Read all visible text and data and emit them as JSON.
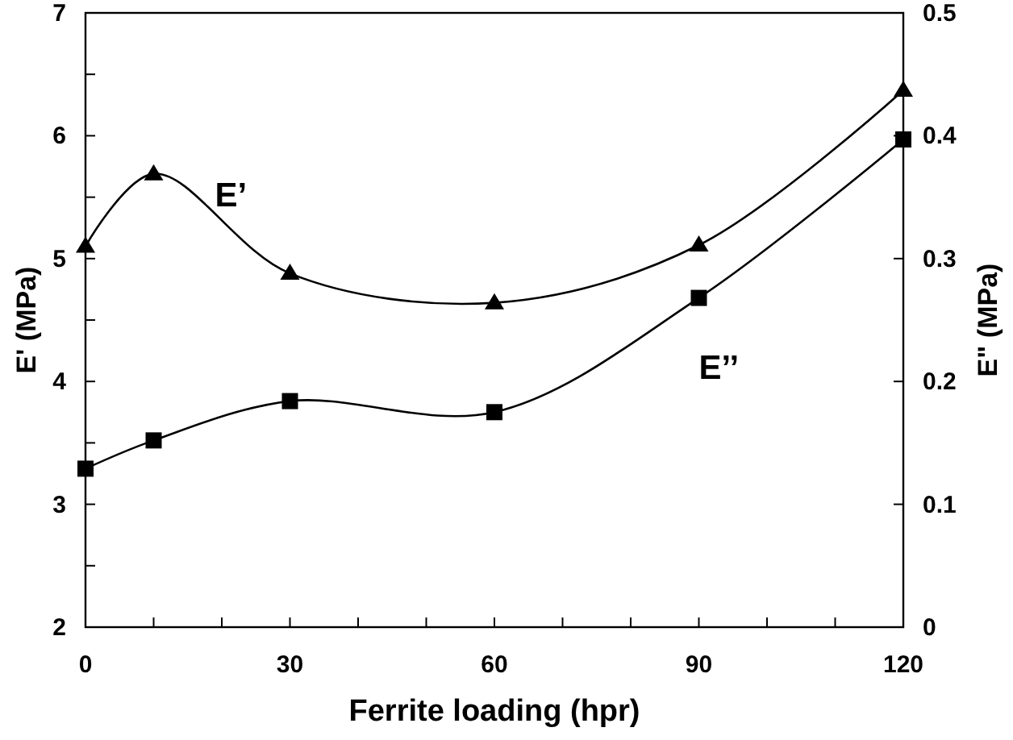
{
  "chart_data": {
    "type": "line",
    "xlabel": "Ferrite loading (hpr)",
    "ylabel": "E' (MPa)",
    "y2label": "E\" (MPa)",
    "x": [
      0,
      10,
      30,
      60,
      90,
      120
    ],
    "series": [
      {
        "name": "E’",
        "color": "#000000",
        "marker": "triangle",
        "values": [
          5.1,
          5.69,
          4.88,
          4.64,
          5.11,
          6.37
        ]
      },
      {
        "name": "E’’",
        "color": "#000000",
        "marker": "square",
        "axis": "y2",
        "values": [
          0.129,
          0.152,
          0.184,
          0.175,
          0.268,
          0.397
        ]
      }
    ],
    "xlim": [
      0,
      120
    ],
    "xticks": [
      0,
      {
        "value": 10,
        "label": null
      },
      {
        "value": 20,
        "label": null
      },
      30,
      {
        "value": 40,
        "label": null
      },
      {
        "value": 50,
        "label": null
      },
      60,
      {
        "value": 70,
        "label": null
      },
      {
        "value": 80,
        "label": null
      },
      90,
      {
        "value": 100,
        "label": null
      },
      {
        "value": 110,
        "label": null
      },
      120
    ],
    "ylim": [
      2,
      7
    ],
    "yticks": [
      2,
      {
        "value": 2.5,
        "label": null
      },
      3,
      {
        "value": 3.5,
        "label": null
      },
      4,
      {
        "value": 4.5,
        "label": null
      },
      5,
      {
        "value": 5.5,
        "label": null
      },
      6,
      {
        "value": 6.5,
        "label": null
      },
      7
    ],
    "y2lim": [
      0,
      0.5
    ],
    "y2ticks": [
      0,
      0.1,
      0.2,
      0.3,
      0.4,
      0.5
    ],
    "grid": false,
    "line_style": "solid"
  }
}
